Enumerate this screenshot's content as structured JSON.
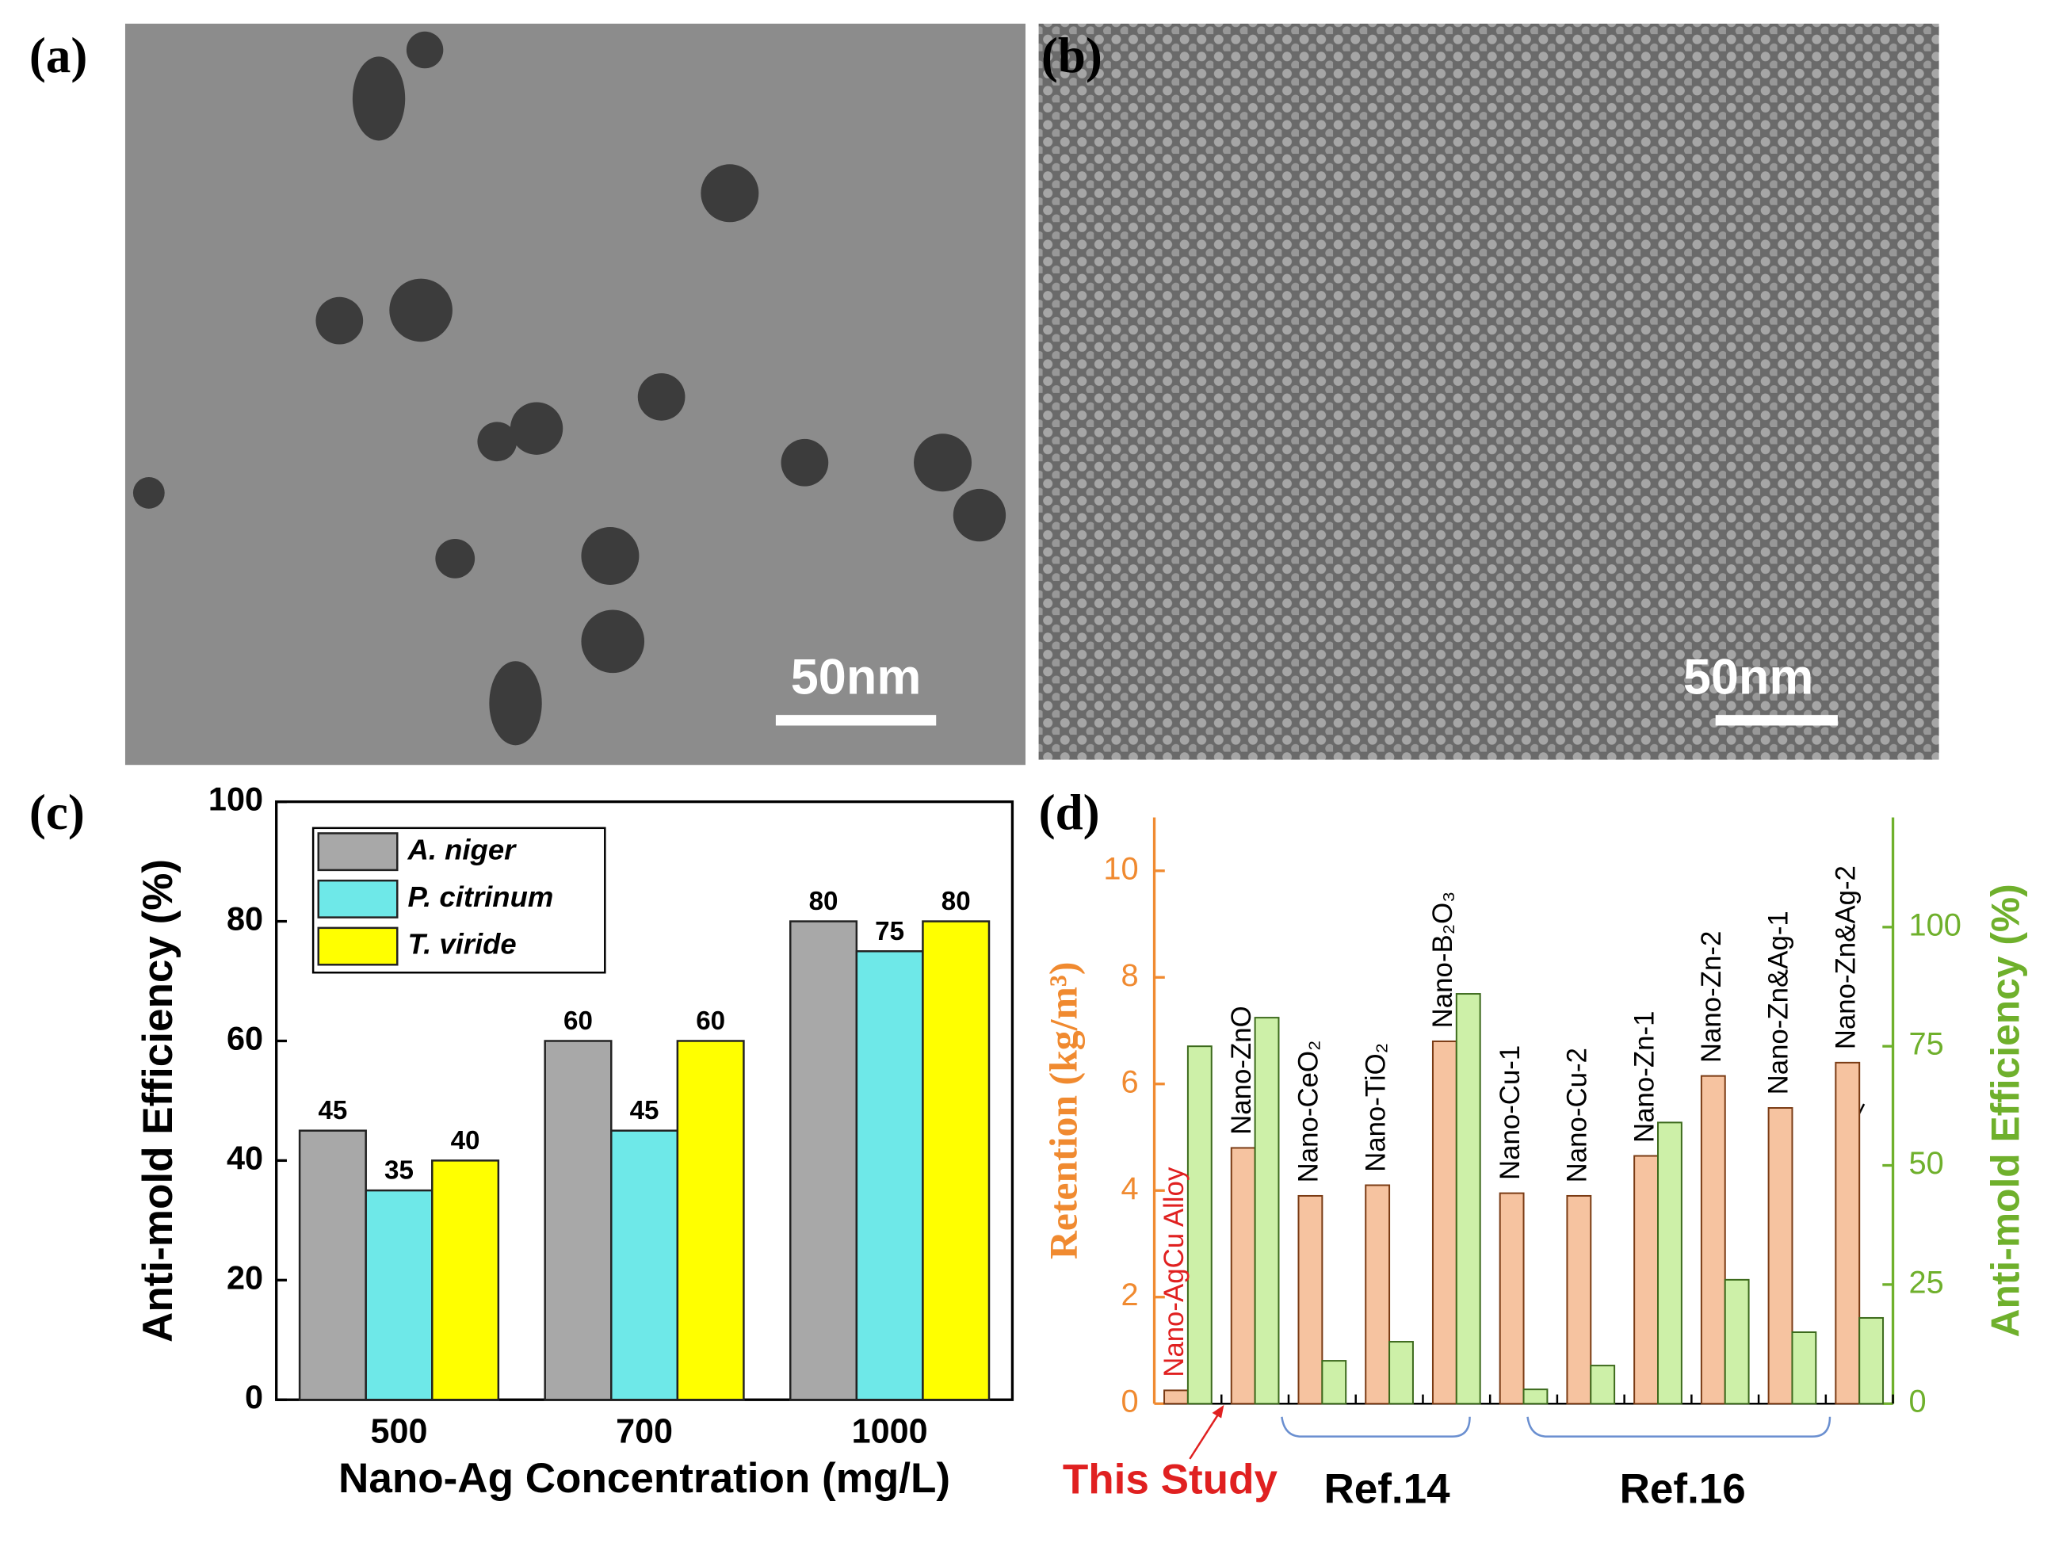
{
  "panels": {
    "a": {
      "label": "(a)",
      "scale_bar": "50nm"
    },
    "b": {
      "label": "(b)",
      "scale_bar": "50nm"
    }
  },
  "chart_data": [
    {
      "type": "bar",
      "label": "(c)",
      "x_label": "Nano-Ag Concentration (mg/L)",
      "y_label": "Anti-mold Efficiency (%)",
      "categories": [
        "500",
        "700",
        "1000"
      ],
      "series": [
        {
          "name": "A. niger",
          "color": "#a8a8a8",
          "values": [
            45,
            60,
            80
          ]
        },
        {
          "name": "P. citrinum",
          "color": "#6ee8e8",
          "values": [
            35,
            45,
            75
          ]
        },
        {
          "name": "T. viride",
          "color": "#ffff00",
          "values": [
            40,
            60,
            80
          ]
        }
      ],
      "ylim": [
        0,
        100
      ],
      "yticks": [
        0,
        20,
        40,
        60,
        80,
        100
      ],
      "legend": "upper-left",
      "value_labels_shown": true
    },
    {
      "type": "bar",
      "label": "(d)",
      "y_label": "Retention (kg/m³)",
      "y2_label": "Anti-mold Efficiency (%)",
      "categories": [
        "Nano-AgCu Alloy",
        "Nano-ZnO",
        "Nano-CeO₂",
        "Nano-TiO₂",
        "Nano-B₂O₃",
        "Nano-Cu-1",
        "Nano-Cu-2",
        "Nano-Zn-1",
        "Nano-Zn-2",
        "Nano-Zn&Ag-1",
        "Nano-Zn&Ag-2"
      ],
      "series": [
        {
          "name": "Retention",
          "color": "#f6c3a0",
          "values": [
            0.25,
            4.8,
            3.9,
            4.1,
            6.8,
            3.95,
            3.9,
            4.65,
            6.15,
            5.55,
            6.4
          ]
        },
        {
          "name": "Anti-mold Efficiency",
          "color": "#cdf0a8",
          "axis": "y2",
          "values": [
            75,
            81,
            9,
            13,
            86,
            3,
            8,
            59,
            26,
            15,
            18
          ]
        }
      ],
      "ylim": [
        0,
        11
      ],
      "yticks": [
        0,
        2,
        4,
        6,
        8,
        10
      ],
      "y2lim": [
        0,
        123
      ],
      "y2ticks": [
        0,
        25,
        50,
        75,
        100
      ],
      "annotations": [
        "This Study",
        "Ref.14",
        "Ref.16"
      ]
    }
  ]
}
